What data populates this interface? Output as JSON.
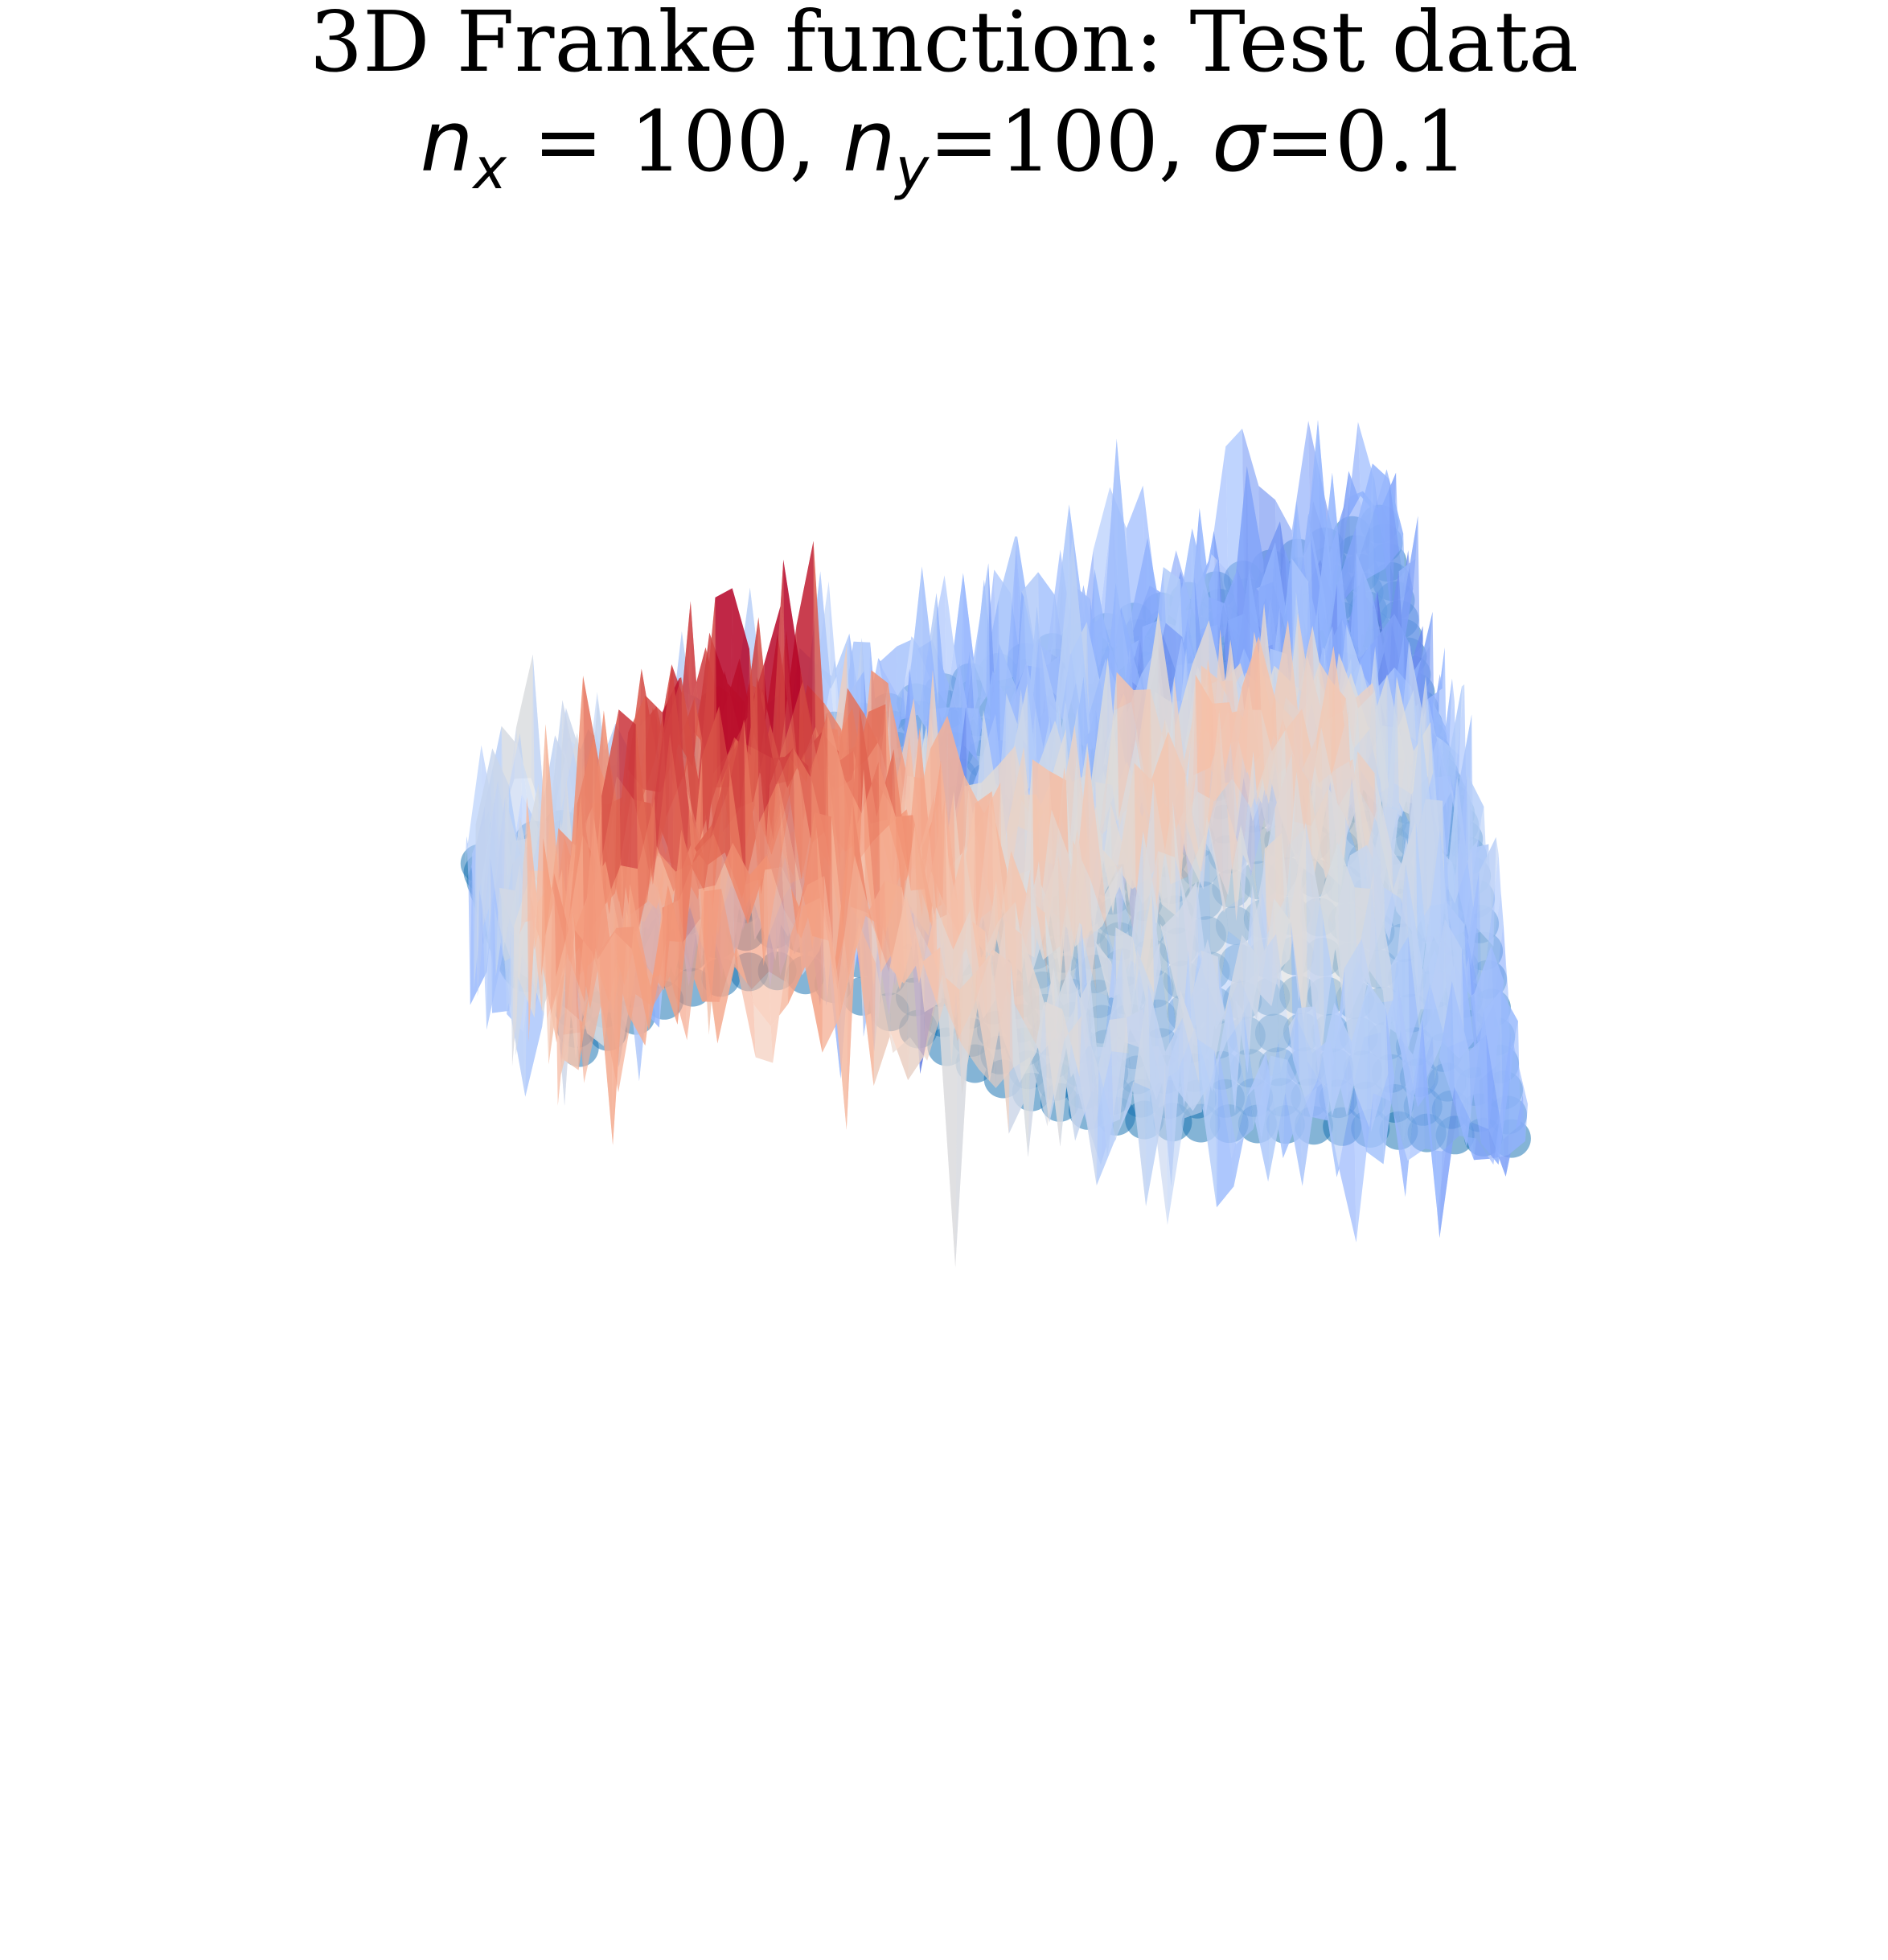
{
  "chart_data": {
    "type": "surface3d",
    "title": "3D Franke function: Test data",
    "subtitle": {
      "nx_symbol": "n",
      "nx_sub": "x",
      "nx_eq": " = 100, ",
      "ny_symbol": "n",
      "ny_sub": "y",
      "ny_eq": "=100, ",
      "sigma_symbol": "σ",
      "sigma_eq": "=0.1"
    },
    "nx": 100,
    "ny": 100,
    "sigma": 0.1,
    "axes_visible": false,
    "grid": false,
    "colormap": "coolwarm",
    "scatter_color": "#1f77b4",
    "z_range": [
      -0.3,
      1.3
    ],
    "series": [
      {
        "kind": "surface",
        "function": "franke_plus_gaussian_noise",
        "x_range": [
          0,
          1
        ],
        "y_range": [
          0,
          1
        ]
      },
      {
        "kind": "scatter",
        "function": "franke_test_points",
        "x_range": [
          0,
          1
        ],
        "y_range": [
          0,
          1
        ]
      }
    ]
  }
}
